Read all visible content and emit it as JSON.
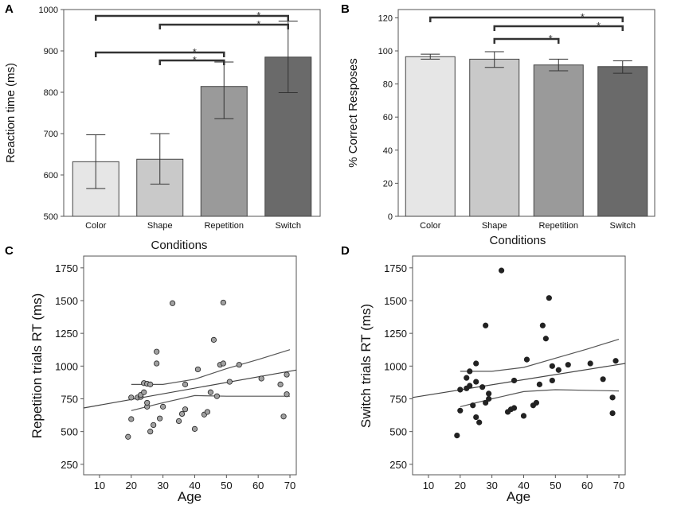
{
  "chart_data": [
    {
      "panel": "A",
      "type": "bar",
      "categories": [
        "Color",
        "Shape",
        "Repetition",
        "Switch"
      ],
      "values": [
        632,
        638,
        814,
        885
      ],
      "error_low": [
        567,
        578,
        736,
        799
      ],
      "error_high": [
        697,
        700,
        873,
        972
      ],
      "bar_colors": [
        "#e6e6e6",
        "#c9c9c9",
        "#9a9a9a",
        "#6a6a6a"
      ],
      "title": "",
      "xlabel": "Conditions",
      "ylabel": "Reaction time (ms)",
      "ylim": [
        500,
        1000
      ],
      "yticks": [
        500,
        600,
        700,
        800,
        900,
        1000
      ],
      "significance": [
        {
          "from": 0,
          "to": 3,
          "label": "*"
        },
        {
          "from": 1,
          "to": 3,
          "label": "*"
        },
        {
          "from": 0,
          "to": 2,
          "label": "*"
        },
        {
          "from": 1,
          "to": 2,
          "label": "*"
        }
      ]
    },
    {
      "panel": "B",
      "type": "bar",
      "categories": [
        "Color",
        "Shape",
        "Repetition",
        "Switch"
      ],
      "values": [
        96.5,
        95,
        91.5,
        90.5
      ],
      "error_low": [
        95,
        90,
        88,
        86.5
      ],
      "error_high": [
        98,
        99.5,
        95,
        94
      ],
      "bar_colors": [
        "#e6e6e6",
        "#c9c9c9",
        "#9a9a9a",
        "#6a6a6a"
      ],
      "title": "",
      "xlabel": "Conditions",
      "ylabel": "% Correct Resposes",
      "ylim": [
        0,
        125
      ],
      "yticks": [
        0,
        20,
        40,
        60,
        80,
        100,
        120
      ],
      "significance": [
        {
          "from": 0,
          "to": 3,
          "label": "*"
        },
        {
          "from": 1,
          "to": 3,
          "label": "*"
        },
        {
          "from": 1,
          "to": 2,
          "label": "*"
        }
      ]
    },
    {
      "panel": "C",
      "type": "scatter",
      "title": "",
      "xlabel": "Age",
      "ylabel": "Repetition trials RT (ms)",
      "xlim": [
        5,
        72
      ],
      "ylim": [
        170,
        1840
      ],
      "xticks": [
        10,
        20,
        30,
        40,
        50,
        60,
        70
      ],
      "yticks": [
        250,
        500,
        750,
        1000,
        1250,
        1500,
        1750
      ],
      "point_color": "#a0a0a0",
      "x": [
        19,
        20,
        20,
        22,
        23,
        23,
        24,
        24,
        25,
        25,
        25,
        26,
        26,
        27,
        28,
        28,
        29,
        30,
        33,
        35,
        36,
        37,
        37,
        40,
        41,
        43,
        44,
        45,
        46,
        47,
        48,
        49,
        49,
        51,
        54,
        61,
        67,
        68,
        69,
        69
      ],
      "y": [
        460,
        595,
        760,
        760,
        765,
        780,
        800,
        870,
        690,
        720,
        865,
        500,
        860,
        550,
        1020,
        1110,
        600,
        690,
        1480,
        580,
        635,
        670,
        860,
        520,
        975,
        630,
        650,
        800,
        1200,
        770,
        1010,
        1485,
        1020,
        880,
        1010,
        905,
        860,
        615,
        785,
        935
      ],
      "fit_line": [
        [
          5,
          680
        ],
        [
          72,
          970
        ]
      ],
      "ci_upper": [
        [
          20,
          860
        ],
        [
          30,
          860
        ],
        [
          40,
          900
        ],
        [
          50,
          980
        ],
        [
          60,
          1050
        ],
        [
          70,
          1125
        ]
      ],
      "ci_lower": [
        [
          20,
          660
        ],
        [
          30,
          720
        ],
        [
          40,
          775
        ],
        [
          50,
          770
        ],
        [
          60,
          770
        ],
        [
          70,
          770
        ]
      ]
    },
    {
      "panel": "D",
      "type": "scatter",
      "title": "",
      "xlabel": "Age",
      "ylabel": "Switch trials RT (ms)",
      "xlim": [
        5,
        72
      ],
      "ylim": [
        170,
        1840
      ],
      "xticks": [
        10,
        20,
        30,
        40,
        50,
        60,
        70
      ],
      "yticks": [
        250,
        500,
        750,
        1000,
        1250,
        1500,
        1750
      ],
      "point_color": "#222222",
      "x": [
        19,
        20,
        20,
        22,
        22,
        23,
        23,
        24,
        25,
        25,
        25,
        26,
        27,
        28,
        28,
        29,
        29,
        33,
        35,
        36,
        37,
        37,
        40,
        41,
        43,
        44,
        45,
        46,
        47,
        48,
        49,
        49,
        51,
        54,
        61,
        65,
        68,
        68,
        69
      ],
      "y": [
        470,
        820,
        660,
        830,
        910,
        850,
        960,
        700,
        610,
        880,
        1020,
        570,
        840,
        1310,
        720,
        750,
        790,
        1730,
        650,
        670,
        890,
        680,
        620,
        1050,
        700,
        720,
        860,
        1310,
        1210,
        1520,
        1000,
        890,
        970,
        1010,
        1020,
        900,
        640,
        760,
        1040
      ],
      "fit_line": [
        [
          5,
          760
        ],
        [
          72,
          1020
        ]
      ],
      "ci_upper": [
        [
          20,
          960
        ],
        [
          30,
          960
        ],
        [
          40,
          990
        ],
        [
          50,
          1060
        ],
        [
          60,
          1130
        ],
        [
          70,
          1205
        ]
      ],
      "ci_lower": [
        [
          20,
          690
        ],
        [
          30,
          750
        ],
        [
          40,
          805
        ],
        [
          50,
          820
        ],
        [
          60,
          815
        ],
        [
          70,
          810
        ]
      ]
    }
  ]
}
